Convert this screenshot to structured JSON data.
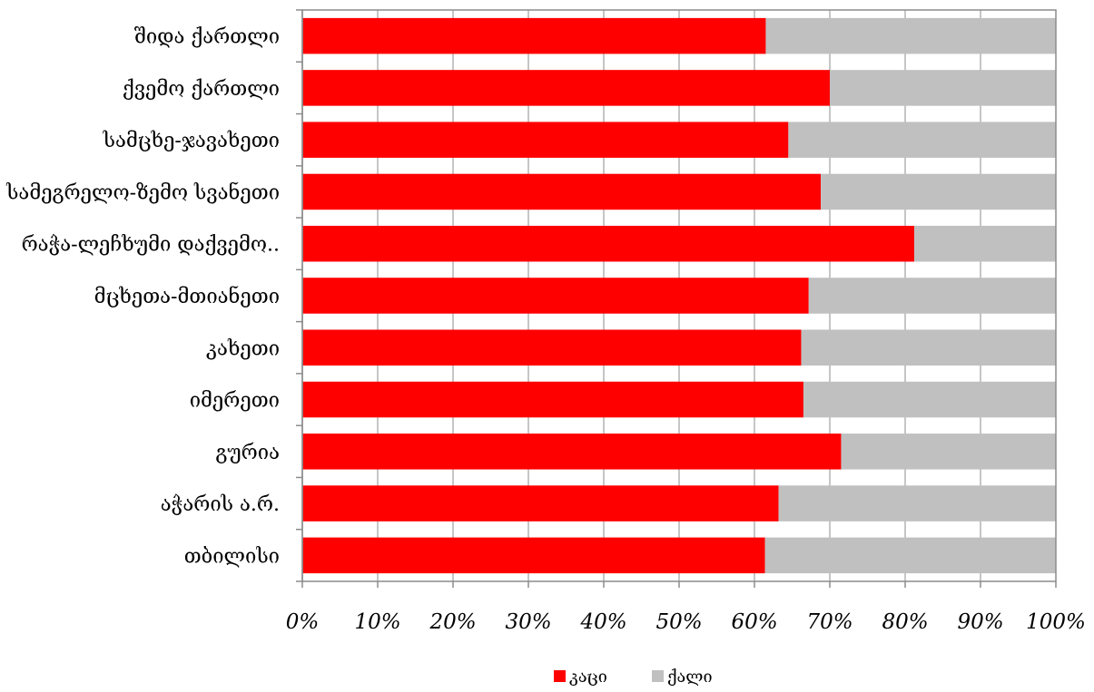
{
  "chart_data": {
    "type": "bar",
    "orientation": "horizontal",
    "stacked": true,
    "percent_stacked": true,
    "categories": [
      "შიდა ქართლი",
      "ქვემო ქართლი",
      "სამცხე-ჯავახეთი",
      "სამეგრელო-ზემო სვანეთი",
      "რაჭა-ლეჩხუმი დაქვემო..",
      "მცხეთა-მთიანეთი",
      "კახეთი",
      "იმერეთი",
      "გურია",
      "აჭარის ა.რ.",
      "თბილისი"
    ],
    "series": [
      {
        "name": "კაცი",
        "color": "#ff0000",
        "values": [
          61.5,
          70.0,
          64.5,
          68.8,
          81.2,
          67.2,
          66.2,
          66.5,
          71.5,
          63.2,
          61.4
        ]
      },
      {
        "name": "ქალი",
        "color": "#c0c0c0",
        "values": [
          38.5,
          30.0,
          35.5,
          31.2,
          18.8,
          32.8,
          33.8,
          33.5,
          28.5,
          36.8,
          38.6
        ]
      }
    ],
    "xlim": [
      0,
      100
    ],
    "xticks": [
      "0%",
      "10%",
      "20%",
      "30%",
      "40%",
      "50%",
      "60%",
      "70%",
      "80%",
      "90%",
      "100%"
    ],
    "grid": true,
    "legend_position": "bottom",
    "title": "",
    "xlabel": "",
    "ylabel": ""
  }
}
